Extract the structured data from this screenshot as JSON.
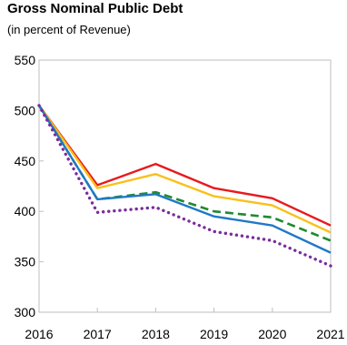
{
  "chart_data": {
    "type": "line",
    "title": "Gross Nominal Public Debt",
    "subtitle": "(in percent of Revenue)",
    "xlabel": "",
    "ylabel": "",
    "x": [
      "2016",
      "2017",
      "2018",
      "2019",
      "2020",
      "2021"
    ],
    "ylim": [
      300,
      550
    ],
    "yticks": [
      300,
      350,
      400,
      450,
      500,
      550
    ],
    "grid": false,
    "legend": "none",
    "series": [
      {
        "color": "#e8191c",
        "style": "solid",
        "values": [
          505,
          426,
          447,
          423,
          413,
          386
        ]
      },
      {
        "color": "#f9c01a",
        "style": "solid",
        "values": [
          505,
          423,
          437,
          415,
          406,
          379
        ]
      },
      {
        "color": "#1e8a2e",
        "style": "dashed",
        "values": [
          505,
          412,
          419,
          400,
          394,
          371
        ]
      },
      {
        "color": "#1f78c8",
        "style": "solid",
        "values": [
          505,
          412,
          417,
          395,
          386,
          359
        ]
      },
      {
        "color": "#7a2d9b",
        "style": "dotted",
        "values": [
          505,
          399,
          404,
          380,
          371,
          346
        ]
      }
    ]
  }
}
